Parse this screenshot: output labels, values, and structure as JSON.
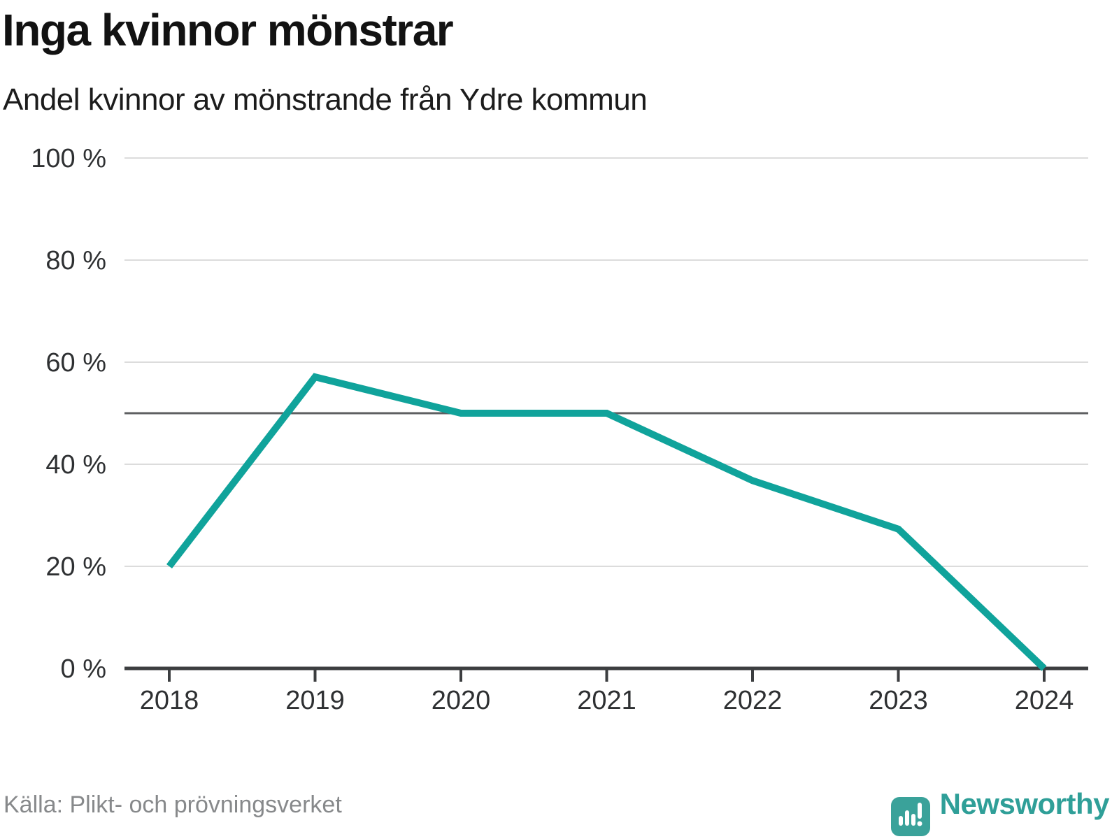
{
  "header": {
    "title": "Inga kvinnor mönstrar",
    "subtitle": "Andel kvinnor av mönstrande från Ydre kommun"
  },
  "footer": {
    "source": "Källa: Plikt- och prövningsverket",
    "brand": "Newsworthy"
  },
  "colors": {
    "line": "#10a39b",
    "reference_line": "#5e5f61",
    "gridline": "#dcdcdc",
    "axis": "#3c3e40",
    "tick_label": "#2e3032",
    "title_text": "#121212",
    "source_text": "#87898b",
    "brand_teal": "#2f9f98"
  },
  "chart_data": {
    "type": "line",
    "title": "Inga kvinnor mönstrar",
    "subtitle": "Andel kvinnor av mönstrande från Ydre kommun",
    "x": [
      2018,
      2019,
      2020,
      2021,
      2022,
      2023,
      2024
    ],
    "series": [
      {
        "name": "Andel kvinnor av mönstrande",
        "values": [
          20,
          57.1,
          50,
          50,
          36.8,
          27.3,
          0
        ]
      }
    ],
    "xlabel": "",
    "ylabel": "",
    "ylim": [
      0,
      100
    ],
    "yticks": [
      0,
      20,
      40,
      60,
      80,
      100
    ],
    "ytick_suffix": " %",
    "reference_line": 50,
    "grid": "horizontal",
    "legend": "none",
    "source": "Källa: Plikt- och prövningsverket"
  }
}
